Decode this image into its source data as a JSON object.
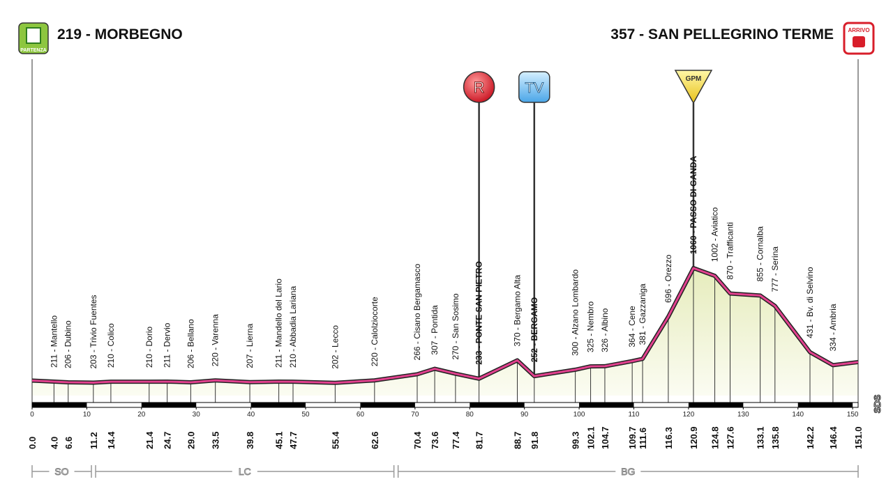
{
  "chart_data": {
    "type": "area",
    "start_badge": "PARTENZA",
    "finish_badge": "ARRIVO",
    "side_label": "SDS",
    "line_color": "#e2418e",
    "fill_color": "#eef1cf",
    "x": [
      {
        "value": 0,
        "label": "0.0"
      },
      {
        "value": 4,
        "label": "4.0"
      },
      6.6,
      11.2,
      14.4,
      21.4,
      24.7,
      {
        "value": 29,
        "label": "29.0"
      },
      33.5,
      39.8,
      45.1,
      47.7,
      55.4,
      62.6,
      70.4,
      73.6,
      77.4,
      81.7,
      88.7,
      91.8,
      99.3,
      102.1,
      104.7,
      109.7,
      111.6,
      116.3,
      120.9,
      124.8,
      127.6,
      133.1,
      135.8,
      142.2,
      146.4,
      {
        "value": 151,
        "label": "151.0"
      }
    ],
    "values": [
      219,
      211,
      206,
      203,
      210,
      210,
      211,
      206,
      220,
      207,
      211,
      210,
      202,
      220,
      266,
      307,
      270,
      233,
      370,
      252,
      300,
      325,
      326,
      364,
      381,
      696,
      1060,
      1002,
      870,
      855,
      777,
      431,
      334,
      357
    ],
    "labels": [
      "219 - MORBEGNO",
      "211 - Mantello",
      "206 - Dubino",
      "203 - Trivio Fuentes",
      "210 - Colico",
      "210 - Dorio",
      "211 - Dervio",
      "206 - Bellano",
      "220 - Varenna",
      "207 - Lierna",
      "211 - Mandello del Lario",
      "210 - Abbadia Lariana",
      "202 - Lecco",
      "220 - Calolziocorte",
      "266 - Cisano Bergamasco",
      "307 - Pontida",
      "270 - San Sosimo",
      "233 - PONTE SAN PIETRO",
      "370 - Bergamo Alta",
      "252 - BERGAMO",
      "300 - Alzano Lombardo",
      "325 - Nembro",
      "326 - Albino",
      "364 - Cene",
      "381 - Gazzaniga",
      "696 - Orezzo",
      "1060 - PASSO DI GANDA",
      "1002 - Aviatico",
      "870 - Trafficanti",
      "855 - Cornalba",
      "777 - Serina",
      "431 - Bv. di Selvino",
      "334 - Ambria",
      "357 - SAN PELLEGRINO TERME"
    ],
    "bold": [
      0,
      17,
      19,
      26,
      33
    ],
    "markers": [
      {
        "label": "R",
        "point": 17
      },
      {
        "label": "TV",
        "point": 19
      },
      {
        "label": "GPM",
        "point": 26
      }
    ],
    "xticks": [
      0,
      10,
      20,
      30,
      40,
      50,
      60,
      70,
      80,
      90,
      100,
      110,
      120,
      130,
      140,
      150
    ],
    "xlim": [
      0,
      151
    ],
    "regions": [
      {
        "name": "SO",
        "from": 0,
        "to": 11.1
      },
      {
        "name": "LC",
        "from": 11.1,
        "to": 66.4
      },
      {
        "name": "BG",
        "from": 66.4,
        "to": 151
      }
    ]
  }
}
